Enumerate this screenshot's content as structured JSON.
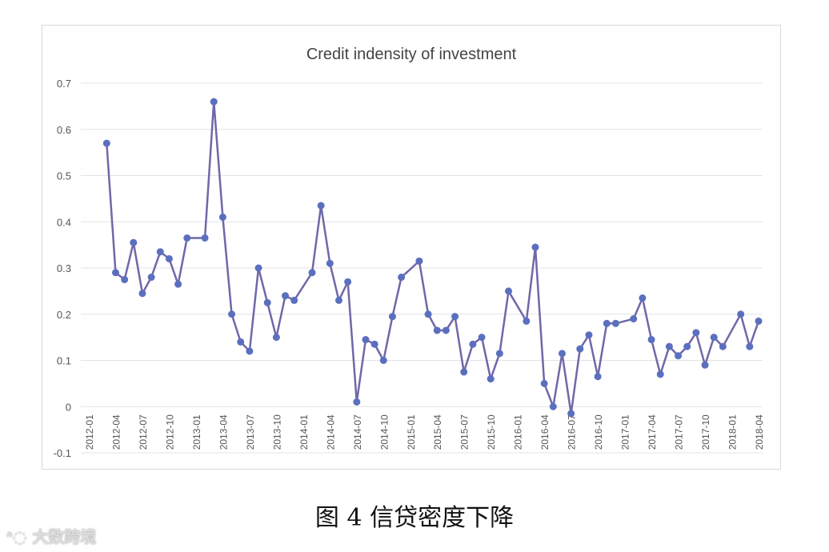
{
  "chart_data": {
    "type": "line",
    "title": "Credit indensity of investment",
    "xlabel": "",
    "ylabel": "",
    "ylim": [
      -0.1,
      0.7
    ],
    "yticks": [
      "-0.1",
      "0",
      "0.1",
      "0.2",
      "0.3",
      "0.4",
      "0.5",
      "0.6",
      "0.7"
    ],
    "xticks": [
      "2012-01",
      "2012-04",
      "2012-07",
      "2012-10",
      "2013-01",
      "2013-04",
      "2013-07",
      "2013-10",
      "2014-01",
      "2014-04",
      "2014-07",
      "2014-10",
      "2015-01",
      "2015-04",
      "2015-07",
      "2015-10",
      "2016-01",
      "2016-04",
      "2016-07",
      "2016-10",
      "2017-01",
      "2017-04",
      "2017-07",
      "2017-10",
      "2018-01",
      "2018-04"
    ],
    "grid": true,
    "color": "#5b6fbf",
    "line_color": "#6f68a8",
    "series": [
      {
        "name": "Credit indensity of investment",
        "points": [
          [
            "2012-03",
            0.57
          ],
          [
            "2012-04",
            0.29
          ],
          [
            "2012-05",
            0.275
          ],
          [
            "2012-06",
            0.355
          ],
          [
            "2012-07",
            0.245
          ],
          [
            "2012-08",
            0.28
          ],
          [
            "2012-09",
            0.335
          ],
          [
            "2012-10",
            0.32
          ],
          [
            "2012-11",
            0.265
          ],
          [
            "2012-12",
            0.365
          ],
          [
            "2013-02",
            0.365
          ],
          [
            "2013-03",
            0.66
          ],
          [
            "2013-04",
            0.41
          ],
          [
            "2013-05",
            0.2
          ],
          [
            "2013-06",
            0.14
          ],
          [
            "2013-07",
            0.12
          ],
          [
            "2013-08",
            0.3
          ],
          [
            "2013-09",
            0.225
          ],
          [
            "2013-10",
            0.15
          ],
          [
            "2013-11",
            0.24
          ],
          [
            "2013-12",
            0.23
          ],
          [
            "2014-02",
            0.29
          ],
          [
            "2014-03",
            0.435
          ],
          [
            "2014-04",
            0.31
          ],
          [
            "2014-05",
            0.23
          ],
          [
            "2014-06",
            0.27
          ],
          [
            "2014-07",
            0.01
          ],
          [
            "2014-08",
            0.145
          ],
          [
            "2014-09",
            0.135
          ],
          [
            "2014-10",
            0.1
          ],
          [
            "2014-11",
            0.195
          ],
          [
            "2014-12",
            0.28
          ],
          [
            "2015-02",
            0.315
          ],
          [
            "2015-03",
            0.2
          ],
          [
            "2015-04",
            0.165
          ],
          [
            "2015-05",
            0.165
          ],
          [
            "2015-06",
            0.195
          ],
          [
            "2015-07",
            0.075
          ],
          [
            "2015-08",
            0.135
          ],
          [
            "2015-09",
            0.15
          ],
          [
            "2015-10",
            0.06
          ],
          [
            "2015-11",
            0.115
          ],
          [
            "2015-12",
            0.25
          ],
          [
            "2016-02",
            0.185
          ],
          [
            "2016-03",
            0.345
          ],
          [
            "2016-04",
            0.05
          ],
          [
            "2016-05",
            0.0
          ],
          [
            "2016-06",
            0.115
          ],
          [
            "2016-07",
            -0.015
          ],
          [
            "2016-08",
            0.125
          ],
          [
            "2016-09",
            0.155
          ],
          [
            "2016-10",
            0.065
          ],
          [
            "2016-11",
            0.18
          ],
          [
            "2016-12",
            0.18
          ],
          [
            "2017-02",
            0.19
          ],
          [
            "2017-03",
            0.235
          ],
          [
            "2017-04",
            0.145
          ],
          [
            "2017-05",
            0.07
          ],
          [
            "2017-06",
            0.13
          ],
          [
            "2017-07",
            0.11
          ],
          [
            "2017-08",
            0.13
          ],
          [
            "2017-09",
            0.16
          ],
          [
            "2017-10",
            0.09
          ],
          [
            "2017-11",
            0.15
          ],
          [
            "2017-12",
            0.13
          ],
          [
            "2018-02",
            0.2
          ],
          [
            "2018-03",
            0.13
          ],
          [
            "2018-04",
            0.185
          ]
        ]
      }
    ]
  },
  "caption": "图 4  信贷密度下降",
  "watermark": "大数跨境"
}
